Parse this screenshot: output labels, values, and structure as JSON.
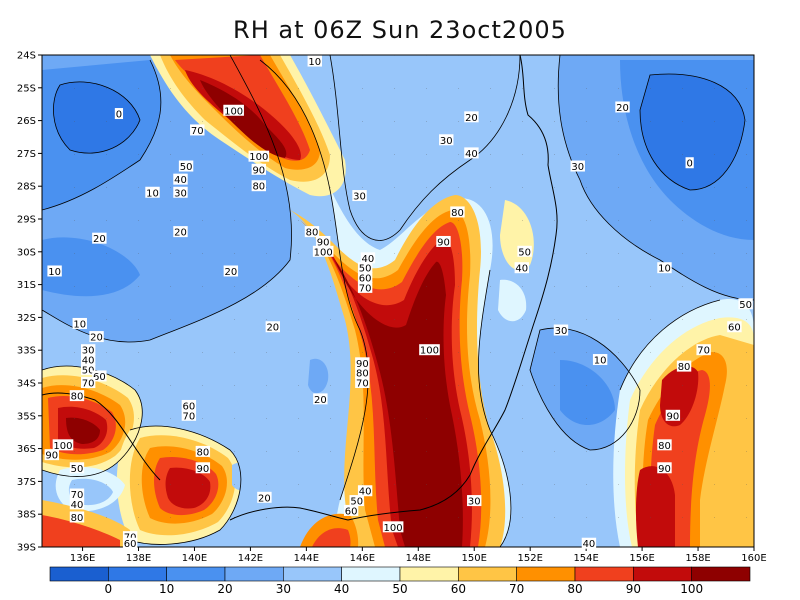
{
  "title": "RH at 06Z Sun 23oct2005",
  "lon_labels": [
    "136E",
    "138E",
    "140E",
    "142E",
    "144E",
    "146E",
    "148E",
    "150E",
    "152E",
    "154E",
    "156E",
    "158E",
    "160E"
  ],
  "lat_labels": [
    "24S",
    "25S",
    "26S",
    "27S",
    "28S",
    "29S",
    "30S",
    "31S",
    "32S",
    "33S",
    "34S",
    "35S",
    "36S",
    "37S",
    "38S",
    "39S"
  ],
  "colorbar": {
    "labels": [
      "0",
      "10",
      "20",
      "30",
      "40",
      "50",
      "60",
      "70",
      "80",
      "90",
      "100"
    ],
    "colors": [
      "#1a5fd0",
      "#2f78e6",
      "#4a91f0",
      "#6ea9f5",
      "#98c6fa",
      "#dff6ff",
      "#fff3a8",
      "#ffc545",
      "#ff9000",
      "#f0401e",
      "#c20b0b",
      "#8e0000"
    ]
  },
  "contour_labels": [
    {
      "text": "10",
      "lon": 144.3,
      "lat": -24.2
    },
    {
      "text": "0",
      "lon": 137.3,
      "lat": -25.8
    },
    {
      "text": "100",
      "lon": 141.4,
      "lat": -25.7
    },
    {
      "text": "70",
      "lon": 140.1,
      "lat": -26.3
    },
    {
      "text": "20",
      "lon": 149.9,
      "lat": -25.9
    },
    {
      "text": "20",
      "lon": 155.3,
      "lat": -25.6
    },
    {
      "text": "30",
      "lon": 149.0,
      "lat": -26.6
    },
    {
      "text": "100",
      "lon": 142.3,
      "lat": -27.1
    },
    {
      "text": "40",
      "lon": 149.9,
      "lat": -27.0
    },
    {
      "text": "50",
      "lon": 139.7,
      "lat": -27.4
    },
    {
      "text": "90",
      "lon": 142.3,
      "lat": -27.5
    },
    {
      "text": "30",
      "lon": 153.7,
      "lat": -27.4
    },
    {
      "text": "0",
      "lon": 157.7,
      "lat": -27.3
    },
    {
      "text": "40",
      "lon": 139.5,
      "lat": -27.8
    },
    {
      "text": "80",
      "lon": 142.3,
      "lat": -28.0
    },
    {
      "text": "30",
      "lon": 139.5,
      "lat": -28.2
    },
    {
      "text": "10",
      "lon": 138.5,
      "lat": -28.2
    },
    {
      "text": "30",
      "lon": 145.9,
      "lat": -28.3
    },
    {
      "text": "80",
      "lon": 149.4,
      "lat": -28.8
    },
    {
      "text": "20",
      "lon": 139.5,
      "lat": -29.4
    },
    {
      "text": "20",
      "lon": 136.6,
      "lat": -29.6
    },
    {
      "text": "80",
      "lon": 144.2,
      "lat": -29.4
    },
    {
      "text": "90",
      "lon": 144.6,
      "lat": -29.7
    },
    {
      "text": "90",
      "lon": 148.9,
      "lat": -29.7
    },
    {
      "text": "100",
      "lon": 144.6,
      "lat": -30.0
    },
    {
      "text": "40",
      "lon": 146.2,
      "lat": -30.2
    },
    {
      "text": "50",
      "lon": 151.8,
      "lat": -30.0
    },
    {
      "text": "50",
      "lon": 146.1,
      "lat": -30.5
    },
    {
      "text": "40",
      "lon": 151.7,
      "lat": -30.5
    },
    {
      "text": "10",
      "lon": 135.0,
      "lat": -30.6
    },
    {
      "text": "20",
      "lon": 141.3,
      "lat": -30.6
    },
    {
      "text": "60",
      "lon": 146.1,
      "lat": -30.8
    },
    {
      "text": "10",
      "lon": 156.8,
      "lat": -30.5
    },
    {
      "text": "70",
      "lon": 146.1,
      "lat": -31.1
    },
    {
      "text": "50",
      "lon": 159.7,
      "lat": -31.6
    },
    {
      "text": "10",
      "lon": 135.9,
      "lat": -32.2
    },
    {
      "text": "20",
      "lon": 142.8,
      "lat": -32.3
    },
    {
      "text": "30",
      "lon": 153.1,
      "lat": -32.4
    },
    {
      "text": "60",
      "lon": 159.3,
      "lat": -32.3
    },
    {
      "text": "20",
      "lon": 136.5,
      "lat": -32.6
    },
    {
      "text": "30",
      "lon": 136.2,
      "lat": -33.0
    },
    {
      "text": "100",
      "lon": 148.4,
      "lat": -33.0
    },
    {
      "text": "70",
      "lon": 158.2,
      "lat": -33.0
    },
    {
      "text": "40",
      "lon": 136.2,
      "lat": -33.3
    },
    {
      "text": "10",
      "lon": 154.5,
      "lat": -33.3
    },
    {
      "text": "50",
      "lon": 136.2,
      "lat": -33.6
    },
    {
      "text": "90",
      "lon": 146.0,
      "lat": -33.4
    },
    {
      "text": "80",
      "lon": 146.0,
      "lat": -33.7
    },
    {
      "text": "60",
      "lon": 136.6,
      "lat": -33.8
    },
    {
      "text": "80",
      "lon": 157.5,
      "lat": -33.5
    },
    {
      "text": "70",
      "lon": 136.2,
      "lat": -34.0
    },
    {
      "text": "70",
      "lon": 146.0,
      "lat": -34.0
    },
    {
      "text": "80",
      "lon": 135.8,
      "lat": -34.4
    },
    {
      "text": "20",
      "lon": 144.5,
      "lat": -34.5
    },
    {
      "text": "60",
      "lon": 139.8,
      "lat": -34.7
    },
    {
      "text": "70",
      "lon": 139.8,
      "lat": -35.0
    },
    {
      "text": "90",
      "lon": 157.1,
      "lat": -35.0
    },
    {
      "text": "100",
      "lon": 135.3,
      "lat": -35.9
    },
    {
      "text": "80",
      "lon": 140.3,
      "lat": -36.1
    },
    {
      "text": "90",
      "lon": 134.9,
      "lat": -36.2
    },
    {
      "text": "80",
      "lon": 156.8,
      "lat": -35.9
    },
    {
      "text": "90",
      "lon": 140.3,
      "lat": -36.6
    },
    {
      "text": "50",
      "lon": 135.8,
      "lat": -36.6
    },
    {
      "text": "90",
      "lon": 156.8,
      "lat": -36.6
    },
    {
      "text": "40",
      "lon": 146.1,
      "lat": -37.3
    },
    {
      "text": "50",
      "lon": 145.8,
      "lat": -37.6
    },
    {
      "text": "30",
      "lon": 150.0,
      "lat": -37.6
    },
    {
      "text": "70",
      "lon": 135.8,
      "lat": -37.4
    },
    {
      "text": "20",
      "lon": 142.5,
      "lat": -37.5
    },
    {
      "text": "40",
      "lon": 135.8,
      "lat": -37.7
    },
    {
      "text": "60",
      "lon": 145.6,
      "lat": -37.9
    },
    {
      "text": "80",
      "lon": 135.8,
      "lat": -38.1
    },
    {
      "text": "100",
      "lon": 147.1,
      "lat": -38.4
    },
    {
      "text": "70",
      "lon": 137.7,
      "lat": -38.7
    },
    {
      "text": "60",
      "lon": 137.7,
      "lat": -38.9
    },
    {
      "text": "40",
      "lon": 154.1,
      "lat": -38.9
    }
  ]
}
